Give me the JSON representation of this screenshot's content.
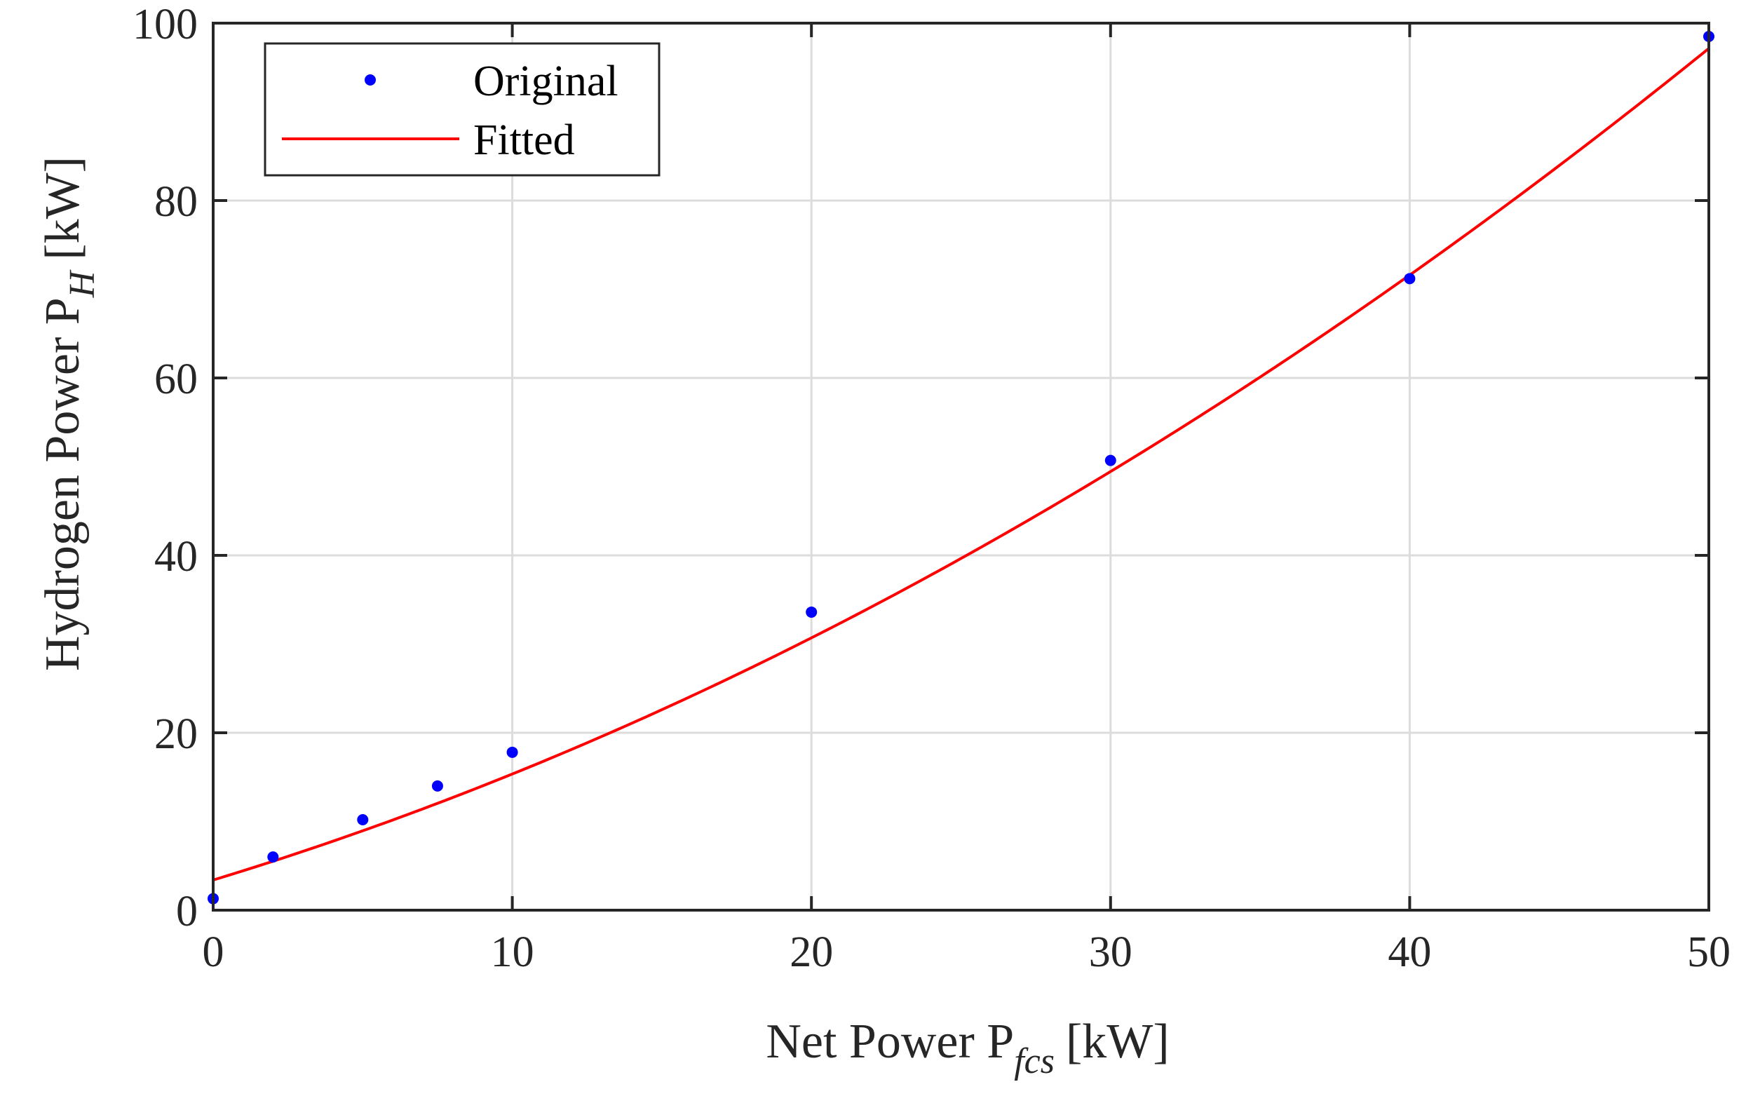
{
  "chart_data": {
    "type": "scatter",
    "xlabel": "Net Power P",
    "xlabel_sub": "fcs",
    "xlabel_unit": "[kW]",
    "ylabel": "Hydrogen Power P",
    "ylabel_sub": "H",
    "ylabel_unit": "[kW]",
    "xlim": [
      0,
      50
    ],
    "ylim": [
      0,
      100
    ],
    "xticks": [
      0,
      10,
      20,
      30,
      40,
      50
    ],
    "yticks": [
      0,
      20,
      40,
      60,
      80,
      100
    ],
    "grid": true,
    "legend_position": "top-left",
    "series": [
      {
        "name": "Original",
        "kind": "points",
        "color": "#0000ff",
        "x": [
          0,
          2,
          5,
          7.5,
          10,
          20,
          30,
          40,
          50
        ],
        "y": [
          1.3,
          6.0,
          10.2,
          14.0,
          17.8,
          33.6,
          50.7,
          71.2,
          98.5
        ]
      },
      {
        "name": "Fitted",
        "kind": "line",
        "color": "#ff0000",
        "fit": {
          "a": 0.017,
          "b": 1.025,
          "c": 3.4
        }
      }
    ]
  }
}
